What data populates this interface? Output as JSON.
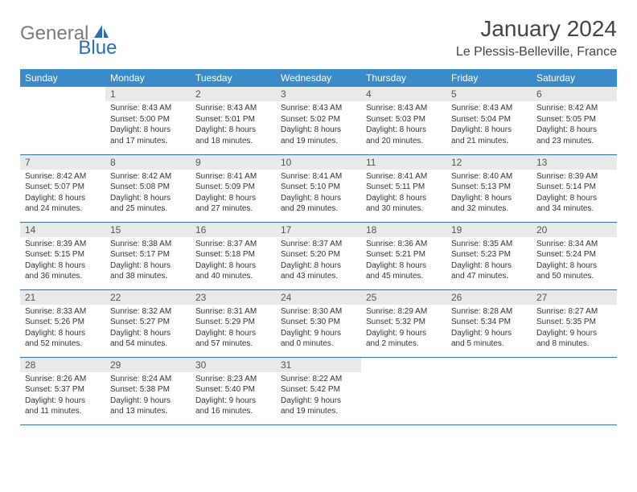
{
  "logo": {
    "general": "General",
    "blue": "Blue"
  },
  "title": "January 2024",
  "location": "Le Plessis-Belleville, France",
  "colors": {
    "header_bg": "#3b8bc9",
    "daynum_bg": "#e9e9e9",
    "row_divider": "#3b6fa0",
    "logo_gray": "#7a7a7a",
    "logo_blue": "#2a6db5"
  },
  "weekdays": [
    "Sunday",
    "Monday",
    "Tuesday",
    "Wednesday",
    "Thursday",
    "Friday",
    "Saturday"
  ],
  "weeks": [
    [
      null,
      {
        "n": "1",
        "sr": "8:43 AM",
        "ss": "5:00 PM",
        "dl": "8 hours and 17 minutes."
      },
      {
        "n": "2",
        "sr": "8:43 AM",
        "ss": "5:01 PM",
        "dl": "8 hours and 18 minutes."
      },
      {
        "n": "3",
        "sr": "8:43 AM",
        "ss": "5:02 PM",
        "dl": "8 hours and 19 minutes."
      },
      {
        "n": "4",
        "sr": "8:43 AM",
        "ss": "5:03 PM",
        "dl": "8 hours and 20 minutes."
      },
      {
        "n": "5",
        "sr": "8:43 AM",
        "ss": "5:04 PM",
        "dl": "8 hours and 21 minutes."
      },
      {
        "n": "6",
        "sr": "8:42 AM",
        "ss": "5:05 PM",
        "dl": "8 hours and 23 minutes."
      }
    ],
    [
      {
        "n": "7",
        "sr": "8:42 AM",
        "ss": "5:07 PM",
        "dl": "8 hours and 24 minutes."
      },
      {
        "n": "8",
        "sr": "8:42 AM",
        "ss": "5:08 PM",
        "dl": "8 hours and 25 minutes."
      },
      {
        "n": "9",
        "sr": "8:41 AM",
        "ss": "5:09 PM",
        "dl": "8 hours and 27 minutes."
      },
      {
        "n": "10",
        "sr": "8:41 AM",
        "ss": "5:10 PM",
        "dl": "8 hours and 29 minutes."
      },
      {
        "n": "11",
        "sr": "8:41 AM",
        "ss": "5:11 PM",
        "dl": "8 hours and 30 minutes."
      },
      {
        "n": "12",
        "sr": "8:40 AM",
        "ss": "5:13 PM",
        "dl": "8 hours and 32 minutes."
      },
      {
        "n": "13",
        "sr": "8:39 AM",
        "ss": "5:14 PM",
        "dl": "8 hours and 34 minutes."
      }
    ],
    [
      {
        "n": "14",
        "sr": "8:39 AM",
        "ss": "5:15 PM",
        "dl": "8 hours and 36 minutes."
      },
      {
        "n": "15",
        "sr": "8:38 AM",
        "ss": "5:17 PM",
        "dl": "8 hours and 38 minutes."
      },
      {
        "n": "16",
        "sr": "8:37 AM",
        "ss": "5:18 PM",
        "dl": "8 hours and 40 minutes."
      },
      {
        "n": "17",
        "sr": "8:37 AM",
        "ss": "5:20 PM",
        "dl": "8 hours and 43 minutes."
      },
      {
        "n": "18",
        "sr": "8:36 AM",
        "ss": "5:21 PM",
        "dl": "8 hours and 45 minutes."
      },
      {
        "n": "19",
        "sr": "8:35 AM",
        "ss": "5:23 PM",
        "dl": "8 hours and 47 minutes."
      },
      {
        "n": "20",
        "sr": "8:34 AM",
        "ss": "5:24 PM",
        "dl": "8 hours and 50 minutes."
      }
    ],
    [
      {
        "n": "21",
        "sr": "8:33 AM",
        "ss": "5:26 PM",
        "dl": "8 hours and 52 minutes."
      },
      {
        "n": "22",
        "sr": "8:32 AM",
        "ss": "5:27 PM",
        "dl": "8 hours and 54 minutes."
      },
      {
        "n": "23",
        "sr": "8:31 AM",
        "ss": "5:29 PM",
        "dl": "8 hours and 57 minutes."
      },
      {
        "n": "24",
        "sr": "8:30 AM",
        "ss": "5:30 PM",
        "dl": "9 hours and 0 minutes."
      },
      {
        "n": "25",
        "sr": "8:29 AM",
        "ss": "5:32 PM",
        "dl": "9 hours and 2 minutes."
      },
      {
        "n": "26",
        "sr": "8:28 AM",
        "ss": "5:34 PM",
        "dl": "9 hours and 5 minutes."
      },
      {
        "n": "27",
        "sr": "8:27 AM",
        "ss": "5:35 PM",
        "dl": "9 hours and 8 minutes."
      }
    ],
    [
      {
        "n": "28",
        "sr": "8:26 AM",
        "ss": "5:37 PM",
        "dl": "9 hours and 11 minutes."
      },
      {
        "n": "29",
        "sr": "8:24 AM",
        "ss": "5:38 PM",
        "dl": "9 hours and 13 minutes."
      },
      {
        "n": "30",
        "sr": "8:23 AM",
        "ss": "5:40 PM",
        "dl": "9 hours and 16 minutes."
      },
      {
        "n": "31",
        "sr": "8:22 AM",
        "ss": "5:42 PM",
        "dl": "9 hours and 19 minutes."
      },
      null,
      null,
      null
    ]
  ],
  "labels": {
    "sunrise": "Sunrise: ",
    "sunset": "Sunset: ",
    "daylight": "Daylight: "
  }
}
